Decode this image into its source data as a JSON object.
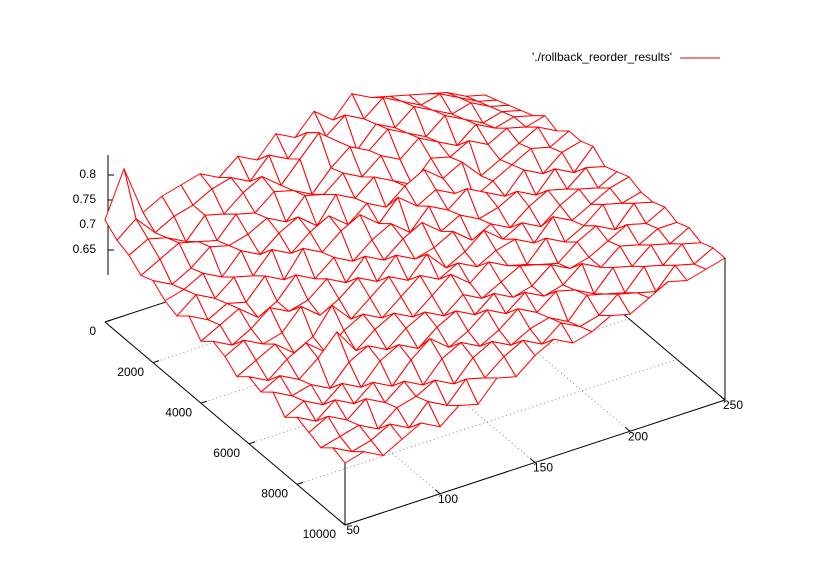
{
  "chart_data": {
    "type": "surface",
    "legend": "top right",
    "hidden3d": true,
    "grid": true,
    "xlim": [
      50,
      250
    ],
    "xticks": [
      50,
      100,
      150,
      200,
      250
    ],
    "ylim": [
      0,
      10000
    ],
    "yticks": [
      0,
      2000,
      4000,
      6000,
      8000,
      10000
    ],
    "zlim": [
      0.6,
      0.84
    ],
    "zticks": [
      0.65,
      0.7,
      0.75,
      0.8
    ],
    "series": [
      {
        "name": "'./rollback_reorder_results'",
        "color": "#ff0000"
      }
    ],
    "x": [
      50,
      60,
      70,
      80,
      90,
      100,
      110,
      120,
      130,
      140,
      150,
      160,
      170,
      180,
      190,
      200,
      210,
      220,
      230,
      240,
      250
    ],
    "y": [
      0,
      500,
      1000,
      1500,
      2000,
      2500,
      3000,
      3500,
      4000,
      4500,
      5000,
      5500,
      6000,
      6500,
      7000,
      7500,
      8000,
      8500,
      9000,
      9500,
      10000
    ],
    "z": [
      [
        0.71,
        0.8,
        0.7,
        0.72,
        0.73,
        0.74,
        0.72,
        0.75,
        0.73,
        0.77,
        0.75,
        0.79,
        0.76,
        0.8,
        0.78,
        0.77,
        0.76,
        0.75,
        0.74,
        0.72,
        0.71
      ],
      [
        0.69,
        0.72,
        0.68,
        0.7,
        0.71,
        0.73,
        0.74,
        0.72,
        0.76,
        0.74,
        0.78,
        0.76,
        0.79,
        0.77,
        0.8,
        0.78,
        0.76,
        0.77,
        0.75,
        0.73,
        0.72
      ],
      [
        0.68,
        0.7,
        0.69,
        0.67,
        0.71,
        0.7,
        0.73,
        0.75,
        0.72,
        0.76,
        0.8,
        0.77,
        0.74,
        0.78,
        0.76,
        0.79,
        0.77,
        0.75,
        0.76,
        0.74,
        0.73
      ],
      [
        0.66,
        0.68,
        0.7,
        0.69,
        0.68,
        0.72,
        0.71,
        0.74,
        0.73,
        0.71,
        0.75,
        0.78,
        0.76,
        0.79,
        0.77,
        0.75,
        0.78,
        0.76,
        0.74,
        0.75,
        0.74
      ],
      [
        0.67,
        0.65,
        0.67,
        0.7,
        0.69,
        0.7,
        0.72,
        0.7,
        0.74,
        0.73,
        0.76,
        0.74,
        0.77,
        0.75,
        0.78,
        0.76,
        0.74,
        0.77,
        0.75,
        0.76,
        0.75
      ],
      [
        0.65,
        0.66,
        0.68,
        0.66,
        0.7,
        0.68,
        0.71,
        0.73,
        0.7,
        0.75,
        0.73,
        0.76,
        0.74,
        0.72,
        0.76,
        0.75,
        0.77,
        0.75,
        0.77,
        0.76,
        0.77
      ],
      [
        0.64,
        0.67,
        0.65,
        0.68,
        0.67,
        0.71,
        0.69,
        0.72,
        0.74,
        0.71,
        0.74,
        0.72,
        0.75,
        0.77,
        0.74,
        0.76,
        0.72,
        0.74,
        0.76,
        0.78,
        0.76
      ],
      [
        0.66,
        0.64,
        0.66,
        0.65,
        0.69,
        0.67,
        0.72,
        0.7,
        0.73,
        0.75,
        0.72,
        0.76,
        0.73,
        0.75,
        0.73,
        0.71,
        0.73,
        0.75,
        0.77,
        0.76,
        0.78
      ],
      [
        0.63,
        0.65,
        0.67,
        0.64,
        0.66,
        0.7,
        0.68,
        0.71,
        0.69,
        0.72,
        0.74,
        0.71,
        0.75,
        0.73,
        0.76,
        0.74,
        0.72,
        0.76,
        0.74,
        0.77,
        0.78
      ],
      [
        0.65,
        0.63,
        0.65,
        0.68,
        0.66,
        0.67,
        0.7,
        0.68,
        0.72,
        0.7,
        0.73,
        0.75,
        0.72,
        0.74,
        0.72,
        0.73,
        0.75,
        0.73,
        0.77,
        0.75,
        0.79
      ],
      [
        0.64,
        0.66,
        0.64,
        0.65,
        0.69,
        0.66,
        0.68,
        0.71,
        0.69,
        0.73,
        0.71,
        0.72,
        0.74,
        0.71,
        0.73,
        0.71,
        0.74,
        0.76,
        0.75,
        0.78,
        0.77
      ],
      [
        0.62,
        0.64,
        0.66,
        0.63,
        0.65,
        0.7,
        0.66,
        0.69,
        0.72,
        0.7,
        0.74,
        0.7,
        0.72,
        0.75,
        0.72,
        0.74,
        0.72,
        0.75,
        0.77,
        0.76,
        0.78
      ],
      [
        0.64,
        0.62,
        0.65,
        0.67,
        0.64,
        0.67,
        0.69,
        0.67,
        0.7,
        0.73,
        0.71,
        0.73,
        0.71,
        0.73,
        0.74,
        0.72,
        0.76,
        0.74,
        0.76,
        0.78,
        0.79
      ],
      [
        0.63,
        0.65,
        0.63,
        0.66,
        0.7,
        0.65,
        0.68,
        0.7,
        0.68,
        0.71,
        0.74,
        0.71,
        0.74,
        0.72,
        0.71,
        0.75,
        0.73,
        0.75,
        0.78,
        0.77,
        0.78
      ],
      [
        0.65,
        0.63,
        0.64,
        0.62,
        0.66,
        0.68,
        0.66,
        0.69,
        0.71,
        0.69,
        0.72,
        0.7,
        0.72,
        0.74,
        0.73,
        0.72,
        0.75,
        0.77,
        0.75,
        0.79,
        0.78
      ],
      [
        0.62,
        0.64,
        0.62,
        0.65,
        0.63,
        0.67,
        0.69,
        0.67,
        0.7,
        0.72,
        0.7,
        0.73,
        0.71,
        0.72,
        0.75,
        0.73,
        0.74,
        0.76,
        0.78,
        0.77,
        0.79
      ],
      [
        0.64,
        0.62,
        0.65,
        0.63,
        0.66,
        0.64,
        0.68,
        0.71,
        0.68,
        0.7,
        0.73,
        0.71,
        0.74,
        0.72,
        0.73,
        0.76,
        0.74,
        0.77,
        0.76,
        0.78,
        0.78
      ],
      [
        0.63,
        0.65,
        0.63,
        0.66,
        0.64,
        0.67,
        0.65,
        0.69,
        0.71,
        0.69,
        0.71,
        0.74,
        0.72,
        0.75,
        0.74,
        0.72,
        0.76,
        0.75,
        0.78,
        0.77,
        0.79
      ],
      [
        0.62,
        0.63,
        0.64,
        0.62,
        0.65,
        0.66,
        0.68,
        0.66,
        0.7,
        0.72,
        0.7,
        0.72,
        0.73,
        0.71,
        0.75,
        0.74,
        0.73,
        0.77,
        0.76,
        0.79,
        0.78
      ],
      [
        0.64,
        0.62,
        0.63,
        0.65,
        0.63,
        0.67,
        0.65,
        0.69,
        0.68,
        0.71,
        0.73,
        0.71,
        0.74,
        0.72,
        0.73,
        0.76,
        0.75,
        0.74,
        0.78,
        0.77,
        0.79
      ],
      [
        0.63,
        0.64,
        0.62,
        0.64,
        0.66,
        0.64,
        0.67,
        0.66,
        0.7,
        0.69,
        0.72,
        0.74,
        0.72,
        0.73,
        0.75,
        0.74,
        0.76,
        0.78,
        0.77,
        0.78,
        0.79
      ]
    ]
  }
}
